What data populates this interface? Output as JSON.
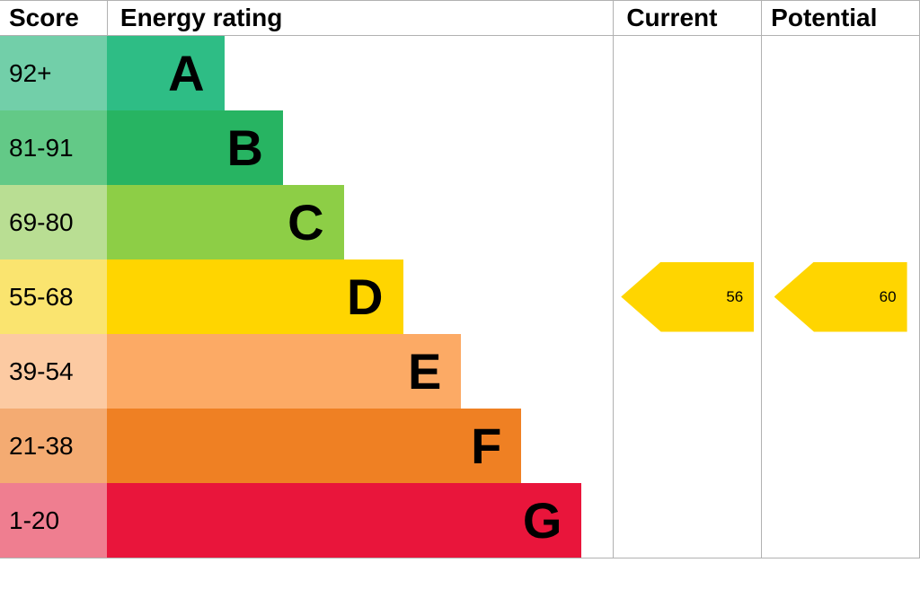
{
  "header": {
    "score": "Score",
    "energy_rating": "Energy rating",
    "current": "Current",
    "potential": "Potential"
  },
  "bands": [
    {
      "score": "92+",
      "letter": "A",
      "bar_color": "#2ebd85",
      "score_bg": "#72cfa9",
      "width_pct": 23.2
    },
    {
      "score": "81-91",
      "letter": "B",
      "bar_color": "#27b462",
      "score_bg": "#63c987",
      "width_pct": 34.8
    },
    {
      "score": "69-80",
      "letter": "C",
      "bar_color": "#8dce46",
      "score_bg": "#b9de93",
      "width_pct": 46.8
    },
    {
      "score": "55-68",
      "letter": "D",
      "bar_color": "#ffd500",
      "score_bg": "#fae46f",
      "width_pct": 58.5
    },
    {
      "score": "39-54",
      "letter": "E",
      "bar_color": "#fcaa65",
      "score_bg": "#fccaa2",
      "width_pct": 70.0
    },
    {
      "score": "21-38",
      "letter": "F",
      "bar_color": "#ef8023",
      "score_bg": "#f4ab72",
      "width_pct": 81.9
    },
    {
      "score": "1-20",
      "letter": "G",
      "bar_color": "#e9153b",
      "score_bg": "#ef7e90",
      "width_pct": 93.8
    }
  ],
  "current": {
    "value": "56",
    "band_index": 3,
    "arrow_color": "#ffd500"
  },
  "potential": {
    "value": "60",
    "band_index": 3,
    "arrow_color": "#ffd500"
  },
  "chart_data": {
    "type": "bar",
    "title": "Energy rating",
    "categories": [
      "A",
      "B",
      "C",
      "D",
      "E",
      "F",
      "G"
    ],
    "score_ranges": [
      "92+",
      "81-91",
      "69-80",
      "55-68",
      "39-54",
      "21-38",
      "1-20"
    ],
    "values": [
      23.2,
      34.8,
      46.8,
      58.5,
      70.0,
      81.9,
      93.8
    ],
    "values_note": "relative band bar lengths in percent of rating column width",
    "series": [
      {
        "name": "Current",
        "value": 56,
        "band": "D"
      },
      {
        "name": "Potential",
        "value": 60,
        "band": "D"
      }
    ],
    "legend_position": "top-right-columns",
    "grid": false
  }
}
